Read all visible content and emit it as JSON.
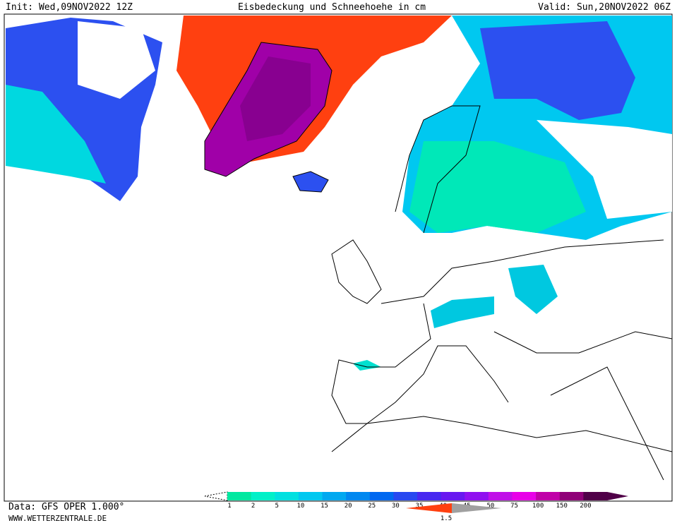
{
  "header": {
    "init": "Init: Wed,09NOV2022 12Z",
    "title": "Eisbedeckung und Schneehoehe in cm",
    "valid": "Valid: Sun,20NOV2022 06Z"
  },
  "footer": {
    "data_source": "Data: GFS OPER 1.000°",
    "website": "WWW.WETTERZENTRALE.DE"
  },
  "legend": {
    "labels": [
      "1",
      "2",
      "5",
      "10",
      "15",
      "20",
      "25",
      "30",
      "35",
      "40",
      "45",
      "50",
      "75",
      "100",
      "150",
      "200"
    ],
    "colors": [
      "#00e8a0",
      "#00f0c8",
      "#00e0e0",
      "#00c8f0",
      "#00a8f0",
      "#0088f0",
      "#0068f0",
      "#2848f0",
      "#4828f0",
      "#6818f0",
      "#9010f0",
      "#c010e8",
      "#e800e8",
      "#c000a8",
      "#900078",
      "#500048"
    ],
    "ice_label": "1.5"
  }
}
